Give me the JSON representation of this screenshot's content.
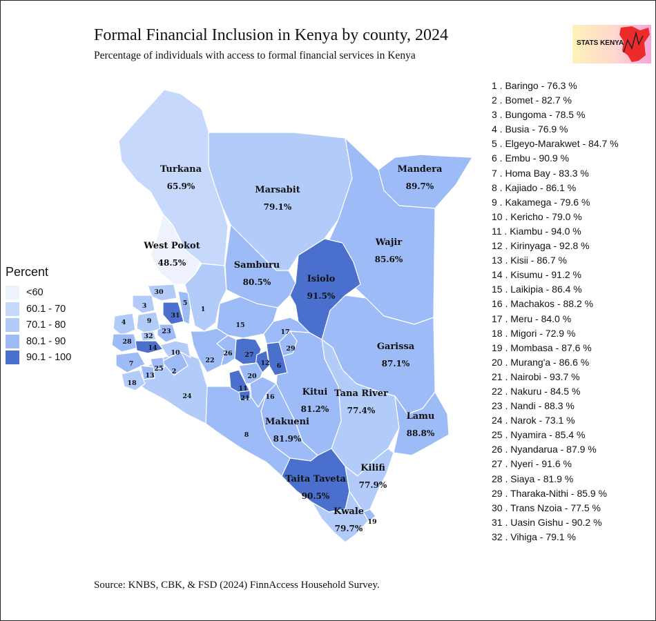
{
  "title": "Formal Financial Inclusion in Kenya by county, 2024",
  "subtitle": "Percentage of individuals with access to formal financial services in Kenya",
  "logo_text": "STATS KENYA",
  "source": "Source: KNBS, CBK, & FSD (2024) FinnAccess Household Survey.",
  "legend": {
    "title": "Percent",
    "items": [
      {
        "label": "<60",
        "color": "#eef2fd"
      },
      {
        "label": "60.1 - 70",
        "color": "#c6d8fb"
      },
      {
        "label": "70.1 - 80",
        "color": "#b3cbf9"
      },
      {
        "label": "80.1 - 90",
        "color": "#9dbbf6"
      },
      {
        "label": "90.1 - 100",
        "color": "#4a6fcc"
      }
    ]
  },
  "map_labels": [
    {
      "name": "Turkana",
      "value": "65.9%"
    },
    {
      "name": "Marsabit",
      "value": "79.1%"
    },
    {
      "name": "Mandera",
      "value": "89.7%"
    },
    {
      "name": "West Pokot",
      "value": "48.5%"
    },
    {
      "name": "Samburu",
      "value": "80.5%"
    },
    {
      "name": "Isiolo",
      "value": "91.5%"
    },
    {
      "name": "Wajir",
      "value": "85.6%"
    },
    {
      "name": "Garissa",
      "value": "87.1%"
    },
    {
      "name": "Kitui",
      "value": "81.2%"
    },
    {
      "name": "Tana River",
      "value": "77.4%"
    },
    {
      "name": "Makueni",
      "value": "81.9%"
    },
    {
      "name": "Lamu",
      "value": "88.8%"
    },
    {
      "name": "Kilifi",
      "value": "77.9%"
    },
    {
      "name": "Taita Taveta",
      "value": "90.5%"
    },
    {
      "name": "Kwale",
      "value": "79.7%"
    }
  ],
  "map_numbers": [
    "1",
    "2",
    "3",
    "4",
    "5",
    "6",
    "7",
    "8",
    "9",
    "10",
    "11",
    "12",
    "13",
    "14",
    "15",
    "16",
    "17",
    "18",
    "19",
    "20",
    "21",
    "22",
    "23",
    "24",
    "25",
    "26",
    "27",
    "28",
    "29",
    "30",
    "31",
    "32"
  ],
  "county_list": [
    "1 . Baringo - 76.3 %",
    "2 . Bomet - 82.7 %",
    "3 . Bungoma - 78.5 %",
    "4 . Busia - 76.9 %",
    "5 . Elgeyo-Marakwet - 84.7 %",
    "6 . Embu - 90.9 %",
    "7 . Homa Bay - 83.3 %",
    "8 . Kajiado - 86.1 %",
    "9 . Kakamega - 79.6 %",
    "10 . Kericho - 79.0 %",
    "11 . Kiambu - 94.0 %",
    "12 . Kirinyaga - 92.8 %",
    "13 . Kisii - 86.7 %",
    "14 . Kisumu - 91.2 %",
    "15 . Laikipia - 86.4 %",
    "16 . Machakos - 88.2 %",
    "17 . Meru - 84.0 %",
    "18 . Migori - 72.9 %",
    "19 . Mombasa - 87.6 %",
    "20 . Murang'a - 86.6 %",
    "21 . Nairobi - 93.7 %",
    "22 . Nakuru - 84.5 %",
    "23 . Nandi - 88.3 %",
    "24 . Narok - 73.1 %",
    "25 . Nyamira - 85.4 %",
    "26 . Nyandarua - 87.9 %",
    "27 . Nyeri - 91.6 %",
    "28 . Siaya - 81.9 %",
    "29 . Tharaka-Nithi - 85.9 %",
    "30 . Trans Nzoia - 77.5 %",
    "31 . Uasin Gishu - 90.2 %",
    "32 . Vihiga - 79.1 %"
  ]
}
